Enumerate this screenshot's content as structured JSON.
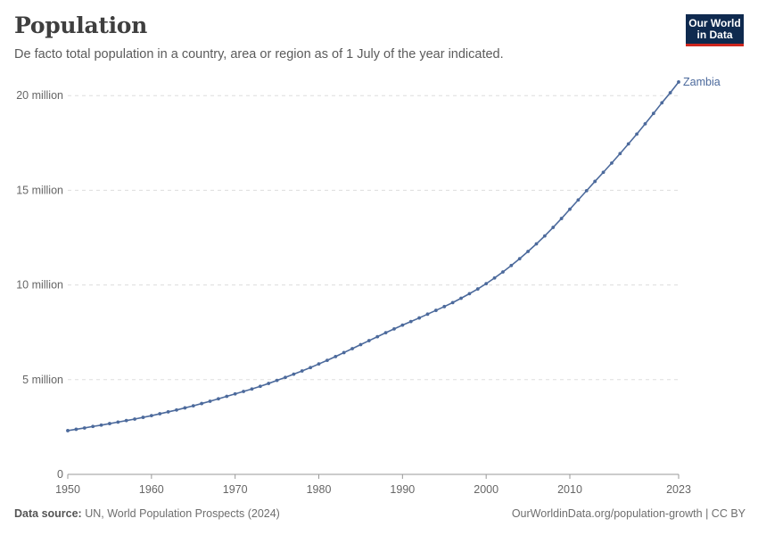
{
  "header": {
    "title": "Population",
    "subtitle": "De facto total population in a country, area or region as of 1 July of the year indicated."
  },
  "logo": {
    "line1": "Our World",
    "line2": "in Data"
  },
  "footer": {
    "source_label": "Data source:",
    "source_text": "UN, World Population Prospects (2024)",
    "right_text": "OurWorldinData.org/population-growth | CC BY"
  },
  "colors": {
    "series": "#4c6a9c",
    "grid": "#dddddd",
    "axis": "#999999"
  },
  "chart_data": {
    "type": "line",
    "title": "Population",
    "subtitle": "De facto total population in a country, area or region as of 1 July of the year indicated.",
    "xlim": [
      1950,
      2023
    ],
    "ylim": [
      0,
      21000000
    ],
    "x_ticks": [
      1950,
      1960,
      1970,
      1980,
      1990,
      2000,
      2010,
      2023
    ],
    "y_ticks": [
      0,
      5000000,
      10000000,
      15000000,
      20000000
    ],
    "y_tick_labels": [
      "0",
      "5 million",
      "10 million",
      "15 million",
      "20 million"
    ],
    "grid": "horizontal dashed",
    "series": [
      {
        "name": "Zambia",
        "x": [
          1950,
          1951,
          1952,
          1953,
          1954,
          1955,
          1956,
          1957,
          1958,
          1959,
          1960,
          1961,
          1962,
          1963,
          1964,
          1965,
          1966,
          1967,
          1968,
          1969,
          1970,
          1971,
          1972,
          1973,
          1974,
          1975,
          1976,
          1977,
          1978,
          1979,
          1980,
          1981,
          1982,
          1983,
          1984,
          1985,
          1986,
          1987,
          1988,
          1989,
          1990,
          1991,
          1992,
          1993,
          1994,
          1995,
          1996,
          1997,
          1998,
          1999,
          2000,
          2001,
          2002,
          2003,
          2004,
          2005,
          2006,
          2007,
          2008,
          2009,
          2010,
          2011,
          2012,
          2013,
          2014,
          2015,
          2016,
          2017,
          2018,
          2019,
          2020,
          2021,
          2022,
          2023
        ],
        "values": [
          2310000,
          2380000,
          2450000,
          2530000,
          2600000,
          2680000,
          2760000,
          2840000,
          2920000,
          3010000,
          3100000,
          3200000,
          3300000,
          3400000,
          3510000,
          3620000,
          3740000,
          3860000,
          3990000,
          4120000,
          4250000,
          4380000,
          4510000,
          4650000,
          4800000,
          4960000,
          5120000,
          5290000,
          5460000,
          5640000,
          5830000,
          6020000,
          6220000,
          6430000,
          6640000,
          6850000,
          7060000,
          7270000,
          7480000,
          7680000,
          7880000,
          8070000,
          8260000,
          8460000,
          8660000,
          8860000,
          9070000,
          9300000,
          9540000,
          9790000,
          10070000,
          10370000,
          10690000,
          11030000,
          11390000,
          11770000,
          12170000,
          12590000,
          13040000,
          13510000,
          14000000,
          14490000,
          14980000,
          15470000,
          15950000,
          16440000,
          16940000,
          17450000,
          17970000,
          18510000,
          19060000,
          19620000,
          20150000,
          20720000
        ]
      }
    ]
  }
}
